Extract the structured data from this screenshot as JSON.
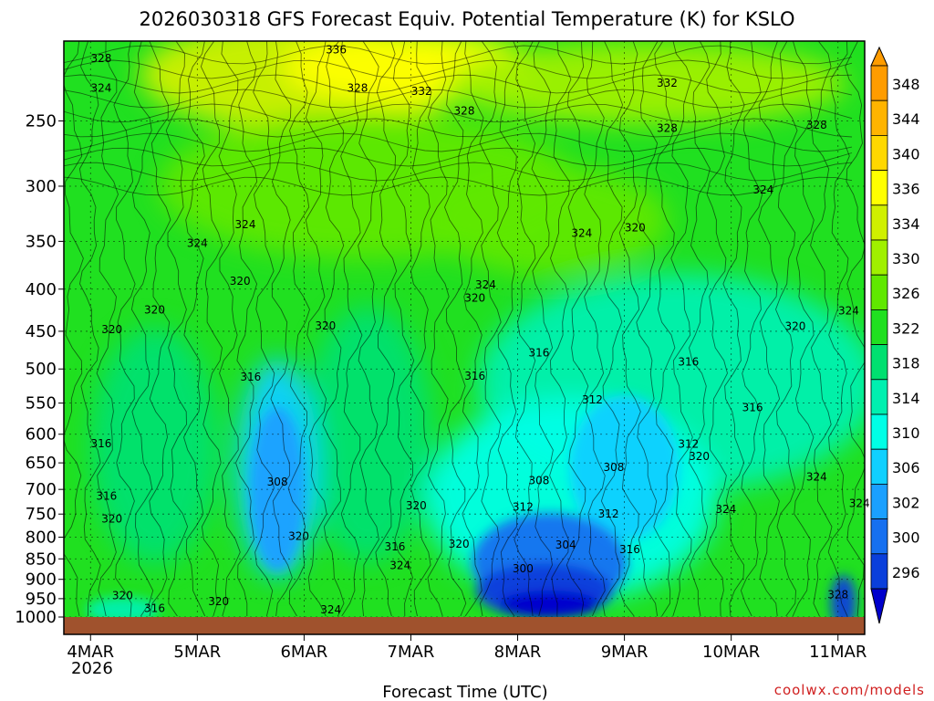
{
  "chart_data": {
    "type": "heatmap",
    "title": "2026030318 GFS Forecast Equiv. Potential Temperature (K) for KSLO",
    "xlabel": "Forecast Time (UTC)",
    "ylabel": "",
    "x_ticks": [
      "4MAR",
      "5MAR",
      "6MAR",
      "7MAR",
      "8MAR",
      "9MAR",
      "10MAR",
      "11MAR"
    ],
    "x_year_label": "2026",
    "xlim_days": [
      "2026-03-03 18Z",
      "2026-03-11 06Z"
    ],
    "y_ticks": [
      250,
      300,
      350,
      400,
      450,
      500,
      550,
      600,
      650,
      700,
      750,
      800,
      850,
      900,
      950,
      1000
    ],
    "ylim": [
      1000,
      200
    ],
    "y_scale": "log-pressure",
    "colorbar": {
      "levels": [
        296,
        300,
        302,
        306,
        310,
        314,
        318,
        322,
        326,
        330,
        334,
        336,
        340,
        344,
        348
      ],
      "colors": [
        "#0000cc",
        "#0a3fdb",
        "#1670f0",
        "#1aa0ff",
        "#10d0ff",
        "#00ffe6",
        "#00f0b0",
        "#00e070",
        "#20e020",
        "#60e800",
        "#a0f000",
        "#d0f000",
        "#ffff00",
        "#ffd800",
        "#ffb400",
        "#ff9c00"
      ],
      "placement": "right"
    },
    "contour_labels": [
      {
        "text": "328",
        "day": 4.1,
        "p": 210
      },
      {
        "text": "336",
        "day": 6.3,
        "p": 205
      },
      {
        "text": "324",
        "day": 4.1,
        "p": 228
      },
      {
        "text": "328",
        "day": 6.5,
        "p": 228
      },
      {
        "text": "332",
        "day": 7.1,
        "p": 230
      },
      {
        "text": "328",
        "day": 7.5,
        "p": 243
      },
      {
        "text": "332",
        "day": 9.4,
        "p": 225
      },
      {
        "text": "328",
        "day": 9.4,
        "p": 255
      },
      {
        "text": "328",
        "day": 10.8,
        "p": 253
      },
      {
        "text": "324",
        "day": 10.3,
        "p": 303
      },
      {
        "text": "324",
        "day": 5.45,
        "p": 334
      },
      {
        "text": "324",
        "day": 5.0,
        "p": 352
      },
      {
        "text": "324",
        "day": 8.6,
        "p": 342
      },
      {
        "text": "320",
        "day": 9.1,
        "p": 337
      },
      {
        "text": "320",
        "day": 5.4,
        "p": 391
      },
      {
        "text": "324",
        "day": 7.7,
        "p": 395
      },
      {
        "text": "320",
        "day": 7.6,
        "p": 410
      },
      {
        "text": "320",
        "day": 4.6,
        "p": 424
      },
      {
        "text": "320",
        "day": 6.2,
        "p": 443
      },
      {
        "text": "320",
        "day": 4.2,
        "p": 448
      },
      {
        "text": "320",
        "day": 10.6,
        "p": 444
      },
      {
        "text": "324",
        "day": 11.1,
        "p": 425
      },
      {
        "text": "316",
        "day": 8.2,
        "p": 478
      },
      {
        "text": "316",
        "day": 9.6,
        "p": 490
      },
      {
        "text": "316",
        "day": 5.5,
        "p": 511
      },
      {
        "text": "316",
        "day": 7.6,
        "p": 510
      },
      {
        "text": "312",
        "day": 8.7,
        "p": 545
      },
      {
        "text": "316",
        "day": 10.2,
        "p": 557
      },
      {
        "text": "316",
        "day": 4.1,
        "p": 616
      },
      {
        "text": "312",
        "day": 9.6,
        "p": 617
      },
      {
        "text": "320",
        "day": 9.7,
        "p": 638
      },
      {
        "text": "308",
        "day": 8.9,
        "p": 658
      },
      {
        "text": "308",
        "day": 5.75,
        "p": 686
      },
      {
        "text": "308",
        "day": 8.2,
        "p": 683
      },
      {
        "text": "316",
        "day": 4.15,
        "p": 713
      },
      {
        "text": "324",
        "day": 10.8,
        "p": 676
      },
      {
        "text": "324",
        "day": 11.2,
        "p": 728
      },
      {
        "text": "320",
        "day": 7.05,
        "p": 733
      },
      {
        "text": "312",
        "day": 8.05,
        "p": 735
      },
      {
        "text": "324",
        "day": 9.95,
        "p": 740
      },
      {
        "text": "312",
        "day": 8.85,
        "p": 750
      },
      {
        "text": "320",
        "day": 4.2,
        "p": 760
      },
      {
        "text": "320",
        "day": 5.95,
        "p": 798
      },
      {
        "text": "304",
        "day": 8.45,
        "p": 818
      },
      {
        "text": "320",
        "day": 7.45,
        "p": 815
      },
      {
        "text": "316",
        "day": 6.85,
        "p": 822
      },
      {
        "text": "316",
        "day": 9.05,
        "p": 828
      },
      {
        "text": "324",
        "day": 6.9,
        "p": 866
      },
      {
        "text": "300",
        "day": 8.05,
        "p": 874
      },
      {
        "text": "320",
        "day": 4.3,
        "p": 942
      },
      {
        "text": "320",
        "day": 5.2,
        "p": 957
      },
      {
        "text": "316",
        "day": 4.6,
        "p": 976
      },
      {
        "text": "324",
        "day": 6.25,
        "p": 980
      },
      {
        "text": "328",
        "day": 11.0,
        "p": 940
      }
    ],
    "credit": "coolwx.com/models",
    "grid": true
  }
}
